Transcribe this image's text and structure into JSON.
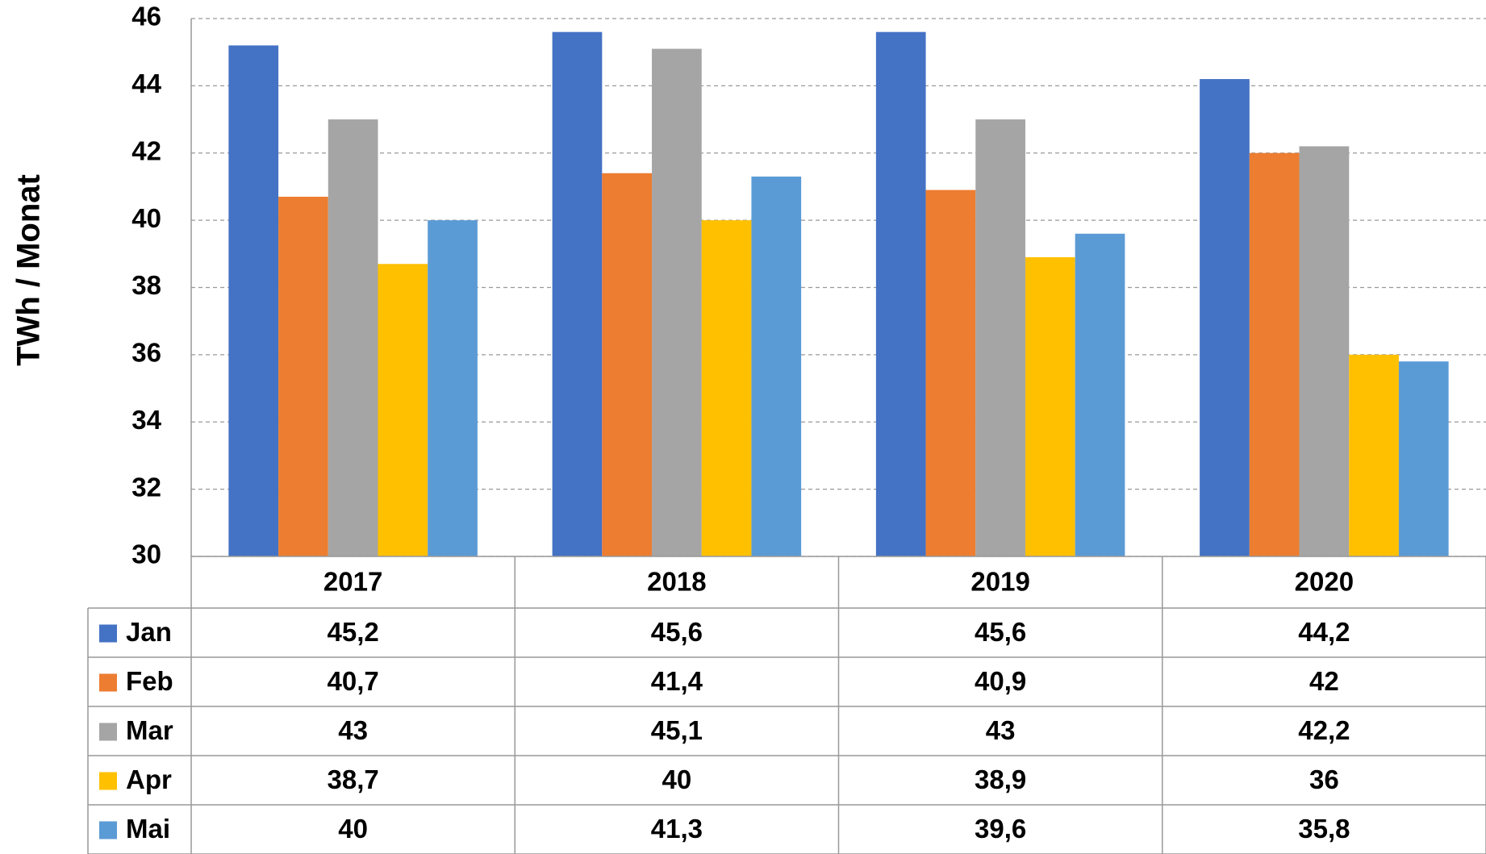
{
  "chart_data": {
    "type": "bar",
    "y_label": "TWh / Monat",
    "categories": [
      "2017",
      "2018",
      "2019",
      "2020"
    ],
    "series": [
      {
        "name": "Jan",
        "color": "#4472c4",
        "values": [
          45.2,
          45.6,
          45.6,
          44.2
        ],
        "value_labels": [
          "45,2",
          "45,6",
          "45,6",
          "44,2"
        ]
      },
      {
        "name": "Feb",
        "color": "#ed7d31",
        "values": [
          40.7,
          41.4,
          40.9,
          42
        ],
        "value_labels": [
          "40,7",
          "41,4",
          "40,9",
          "42"
        ]
      },
      {
        "name": "Mar",
        "color": "#a5a5a5",
        "values": [
          43,
          45.1,
          43,
          42.2
        ],
        "value_labels": [
          "43",
          "45,1",
          "43",
          "42,2"
        ]
      },
      {
        "name": "Apr",
        "color": "#ffc000",
        "values": [
          38.7,
          40,
          38.9,
          36
        ],
        "value_labels": [
          "38,7",
          "40",
          "38,9",
          "36"
        ]
      },
      {
        "name": "Mai",
        "color": "#5b9bd5",
        "values": [
          40,
          41.3,
          39.6,
          35.8
        ],
        "value_labels": [
          "40",
          "41,3",
          "39,6",
          "35,8"
        ]
      }
    ],
    "ylim": [
      30,
      46
    ],
    "yticks": [
      30,
      32,
      34,
      36,
      38,
      40,
      42,
      44,
      46
    ],
    "grid": true
  }
}
